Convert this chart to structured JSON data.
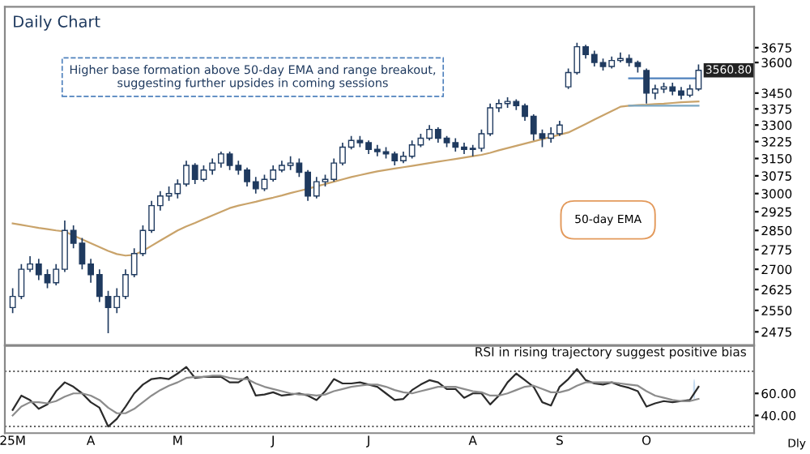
{
  "chart_data": [
    {
      "type": "candlestick",
      "title": "Daily Chart",
      "color": "#1f3a5f",
      "log": "y",
      "tick_labels": "y",
      "categories": [
        null,
        null,
        null,
        null,
        null,
        null,
        null,
        null,
        null,
        null,
        null,
        null,
        null,
        null,
        null,
        null,
        null,
        null,
        null,
        null,
        null,
        null,
        null,
        null,
        null,
        null,
        null,
        null,
        null,
        null,
        null,
        null,
        null,
        null,
        null,
        null,
        null,
        null,
        null,
        null,
        null,
        null,
        null,
        null,
        null,
        null,
        null,
        null,
        null,
        null,
        null,
        null,
        null,
        null,
        null,
        null,
        null,
        null,
        null,
        null,
        null,
        null,
        null,
        null,
        null,
        null,
        null,
        null,
        null,
        null,
        null,
        null,
        null,
        null,
        null,
        null,
        null,
        null,
        null,
        null
      ],
      "ohlc": [
        [
          2560,
          2630,
          2540,
          2600
        ],
        [
          2600,
          2720,
          2590,
          2700
        ],
        [
          2700,
          2750,
          2690,
          2720
        ],
        [
          2720,
          2740,
          2660,
          2680
        ],
        [
          2680,
          2700,
          2630,
          2650
        ],
        [
          2650,
          2720,
          2640,
          2700
        ],
        [
          2700,
          2890,
          2690,
          2850
        ],
        [
          2850,
          2870,
          2780,
          2800
        ],
        [
          2800,
          2820,
          2700,
          2720
        ],
        [
          2720,
          2740,
          2650,
          2680
        ],
        [
          2680,
          2700,
          2580,
          2600
        ],
        [
          2600,
          2620,
          2470,
          2560
        ],
        [
          2560,
          2630,
          2540,
          2600
        ],
        [
          2600,
          2700,
          2590,
          2680
        ],
        [
          2680,
          2780,
          2670,
          2760
        ],
        [
          2760,
          2870,
          2750,
          2850
        ],
        [
          2850,
          2970,
          2840,
          2950
        ],
        [
          2950,
          3010,
          2930,
          2990
        ],
        [
          2990,
          3030,
          2970,
          3000
        ],
        [
          3000,
          3060,
          2980,
          3040
        ],
        [
          3040,
          3140,
          3030,
          3120
        ],
        [
          3120,
          3130,
          3040,
          3060
        ],
        [
          3060,
          3120,
          3050,
          3100
        ],
        [
          3100,
          3150,
          3080,
          3130
        ],
        [
          3130,
          3180,
          3110,
          3170
        ],
        [
          3170,
          3180,
          3100,
          3120
        ],
        [
          3120,
          3140,
          3080,
          3100
        ],
        [
          3100,
          3110,
          3030,
          3050
        ],
        [
          3050,
          3070,
          3000,
          3020
        ],
        [
          3020,
          3080,
          3010,
          3060
        ],
        [
          3060,
          3120,
          3050,
          3100
        ],
        [
          3100,
          3140,
          3090,
          3120
        ],
        [
          3120,
          3160,
          3100,
          3130
        ],
        [
          3130,
          3150,
          3070,
          3090
        ],
        [
          3090,
          3100,
          2970,
          2990
        ],
        [
          2990,
          3070,
          2980,
          3050
        ],
        [
          3050,
          3080,
          3030,
          3060
        ],
        [
          3060,
          3150,
          3050,
          3130
        ],
        [
          3130,
          3220,
          3120,
          3200
        ],
        [
          3200,
          3250,
          3190,
          3230
        ],
        [
          3230,
          3250,
          3200,
          3220
        ],
        [
          3220,
          3230,
          3170,
          3190
        ],
        [
          3190,
          3210,
          3160,
          3180
        ],
        [
          3180,
          3200,
          3150,
          3170
        ],
        [
          3170,
          3180,
          3120,
          3140
        ],
        [
          3140,
          3180,
          3130,
          3160
        ],
        [
          3160,
          3230,
          3150,
          3210
        ],
        [
          3210,
          3260,
          3200,
          3240
        ],
        [
          3240,
          3300,
          3230,
          3280
        ],
        [
          3280,
          3290,
          3220,
          3240
        ],
        [
          3240,
          3250,
          3200,
          3220
        ],
        [
          3220,
          3240,
          3180,
          3200
        ],
        [
          3200,
          3220,
          3170,
          3190
        ],
        [
          3190,
          3210,
          3160,
          3195
        ],
        [
          3195,
          3280,
          3180,
          3260
        ],
        [
          3260,
          3400,
          3250,
          3380
        ],
        [
          3380,
          3420,
          3360,
          3400
        ],
        [
          3400,
          3430,
          3380,
          3410
        ],
        [
          3410,
          3420,
          3370,
          3390
        ],
        [
          3390,
          3400,
          3320,
          3340
        ],
        [
          3340,
          3350,
          3230,
          3260
        ],
        [
          3260,
          3280,
          3200,
          3240
        ],
        [
          3240,
          3290,
          3220,
          3260
        ],
        [
          3260,
          3320,
          3250,
          3300
        ],
        [
          3480,
          3570,
          3470,
          3550
        ],
        [
          3550,
          3700,
          3540,
          3680
        ],
        [
          3680,
          3690,
          3620,
          3640
        ],
        [
          3640,
          3660,
          3580,
          3600
        ],
        [
          3600,
          3620,
          3560,
          3580
        ],
        [
          3580,
          3630,
          3570,
          3610
        ],
        [
          3610,
          3650,
          3600,
          3620
        ],
        [
          3620,
          3640,
          3580,
          3600
        ],
        [
          3600,
          3610,
          3550,
          3580
        ],
        [
          3560,
          3570,
          3400,
          3450
        ],
        [
          3450,
          3490,
          3420,
          3470
        ],
        [
          3470,
          3500,
          3450,
          3480
        ],
        [
          3480,
          3500,
          3440,
          3460
        ],
        [
          3460,
          3480,
          3420,
          3440
        ],
        [
          3440,
          3490,
          3430,
          3470
        ],
        [
          3470,
          3590,
          3460,
          3560.8
        ]
      ],
      "series": [
        {
          "type": "line",
          "color": "#c9a36a",
          "values": [
            2878,
            2872,
            2866,
            2860,
            2855,
            2850,
            2846,
            2830,
            2815,
            2800,
            2785,
            2770,
            2758,
            2752,
            2755,
            2770,
            2790,
            2810,
            2830,
            2850,
            2866,
            2880,
            2895,
            2910,
            2925,
            2940,
            2950,
            2958,
            2966,
            2975,
            2983,
            2992,
            3002,
            3011,
            3020,
            3030,
            3040,
            3050,
            3060,
            3070,
            3078,
            3086,
            3094,
            3100,
            3106,
            3112,
            3118,
            3124,
            3130,
            3136,
            3142,
            3148,
            3154,
            3160,
            3166,
            3175,
            3186,
            3196,
            3206,
            3216,
            3226,
            3236,
            3246,
            3256,
            3266,
            3285,
            3305,
            3325,
            3345,
            3365,
            3385,
            3390,
            3393,
            3395,
            3398,
            3400,
            3403,
            3406,
            3408,
            3410
          ]
        },
        {
          "type": "line",
          "color": "#4f81bd",
          "values": [
            null,
            null,
            null,
            null,
            null,
            null,
            null,
            null,
            null,
            null,
            null,
            null,
            null,
            null,
            null,
            null,
            null,
            null,
            null,
            null,
            null,
            null,
            null,
            null,
            null,
            null,
            null,
            null,
            null,
            null,
            null,
            null,
            null,
            null,
            null,
            null,
            null,
            null,
            null,
            null,
            null,
            null,
            null,
            null,
            null,
            null,
            null,
            null,
            null,
            null,
            null,
            null,
            null,
            null,
            null,
            null,
            null,
            null,
            null,
            null,
            null,
            null,
            null,
            null,
            null,
            null,
            null,
            null,
            null,
            null,
            null,
            3522,
            3522,
            3522,
            3522,
            3522,
            3522,
            3522,
            3522,
            3522
          ]
        },
        {
          "type": "line",
          "color": "#7aa6c2",
          "values": [
            null,
            null,
            null,
            null,
            null,
            null,
            null,
            null,
            null,
            null,
            null,
            null,
            null,
            null,
            null,
            null,
            null,
            null,
            null,
            null,
            null,
            null,
            null,
            null,
            null,
            null,
            null,
            null,
            null,
            null,
            null,
            null,
            null,
            null,
            null,
            null,
            null,
            null,
            null,
            null,
            null,
            null,
            null,
            null,
            null,
            null,
            null,
            null,
            null,
            null,
            null,
            null,
            null,
            null,
            null,
            null,
            null,
            null,
            null,
            null,
            null,
            null,
            null,
            null,
            null,
            null,
            null,
            null,
            null,
            null,
            null,
            3390,
            3390,
            3390,
            3390,
            3390,
            3390,
            3390,
            3390,
            3390
          ]
        }
      ],
      "ylim": [
        2430,
        3890
      ],
      "yticks": [
        2475,
        2550,
        2625,
        2700,
        2775,
        2850,
        2925,
        3000,
        3075,
        3150,
        3225,
        3300,
        3375,
        3450,
        3600,
        3675
      ],
      "annotations": [
        "Higher base formation above 50-day EMA and range breakout, suggesting further upsides in coming sessions",
        "50-day EMA",
        "3560.80"
      ]
    },
    {
      "type": "line",
      "title": "RSI in rising trajectory suggest positive bias",
      "categories": [
        "25M",
        null,
        null,
        null,
        null,
        null,
        null,
        null,
        null,
        "A",
        null,
        null,
        null,
        null,
        null,
        null,
        null,
        null,
        null,
        "M",
        null,
        null,
        null,
        null,
        null,
        null,
        null,
        null,
        null,
        null,
        "J",
        null,
        null,
        null,
        null,
        null,
        null,
        null,
        null,
        null,
        null,
        "J",
        null,
        null,
        null,
        null,
        null,
        null,
        null,
        null,
        null,
        null,
        null,
        "A",
        null,
        null,
        null,
        null,
        null,
        null,
        null,
        null,
        null,
        "S",
        null,
        null,
        null,
        null,
        null,
        null,
        null,
        null,
        null,
        "O",
        null,
        null,
        null,
        null,
        null,
        null
      ],
      "series": [
        {
          "color": "#2b2b2b",
          "values": [
            45,
            58,
            54,
            46,
            50,
            62,
            70,
            66,
            60,
            52,
            47,
            30,
            37,
            48,
            60,
            68,
            73,
            74,
            73,
            78,
            84,
            74,
            75,
            75,
            75,
            70,
            70,
            75,
            58,
            59,
            61,
            58,
            59,
            60,
            58,
            54,
            62,
            73,
            69,
            69,
            70,
            68,
            66,
            60,
            54,
            55,
            63,
            68,
            72,
            70,
            64,
            64,
            56,
            60,
            60,
            50,
            58,
            70,
            78,
            72,
            66,
            52,
            49,
            66,
            73,
            82,
            72,
            69,
            68,
            70,
            67,
            65,
            62,
            48,
            51,
            53,
            52,
            53,
            54,
            66
          ]
        },
        {
          "color": "#8c8c8c",
          "values": [
            40,
            48,
            52,
            52,
            51,
            53,
            57,
            60,
            60,
            58,
            54,
            47,
            42,
            42,
            46,
            52,
            58,
            63,
            67,
            70,
            74,
            75,
            75,
            76,
            76,
            74,
            73,
            73,
            69,
            66,
            64,
            62,
            60,
            59,
            59,
            58,
            59,
            62,
            64,
            66,
            67,
            68,
            68,
            66,
            63,
            61,
            60,
            62,
            64,
            66,
            66,
            66,
            64,
            62,
            61,
            58,
            58,
            60,
            63,
            66,
            67,
            64,
            61,
            61,
            63,
            67,
            70,
            70,
            70,
            70,
            69,
            68,
            67,
            62,
            58,
            56,
            54,
            53,
            53,
            55
          ]
        }
      ],
      "ylim": [
        24,
        103
      ],
      "yticks": [
        {
          "value": 40,
          "label": "40.00"
        },
        {
          "value": 60,
          "label": "60.00"
        }
      ],
      "ref_lines": [
        {
          "axis": "y",
          "value": 80,
          "color": "#555555",
          "line_style": "dotted"
        },
        {
          "axis": "y",
          "value": 30,
          "color": "#555555",
          "line_style": "dotted"
        }
      ],
      "annotations": [
        "Dly"
      ]
    }
  ]
}
